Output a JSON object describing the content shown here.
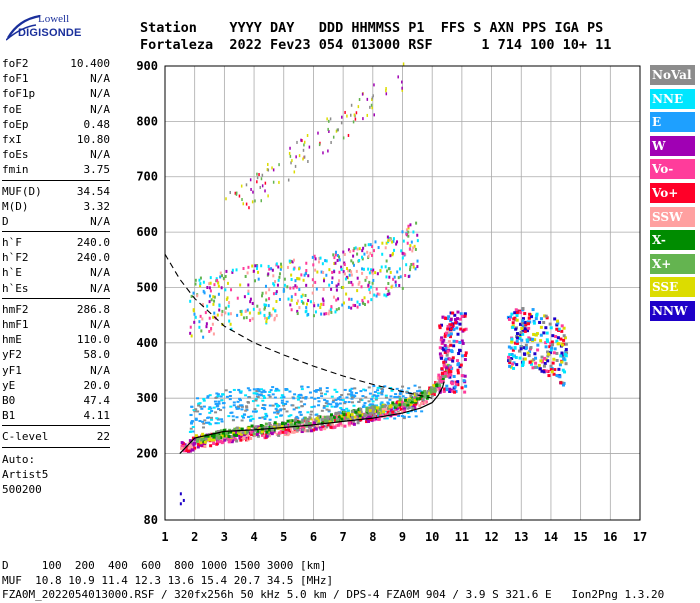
{
  "logo": {
    "line1": "Lowell",
    "line2": "DIGISONDE"
  },
  "header": {
    "line1": "Station    YYYY DAY   DDD HHMMSS P1  FFS S AXN PPS IGA PS",
    "line2": "Fortaleza  2022 Fev23 054 013000 RSF      1 714 100 10+ 11"
  },
  "params": [
    [
      [
        "foF2",
        "10.400"
      ],
      [
        "foF1",
        "N/A"
      ],
      [
        "foF1p",
        "N/A"
      ],
      [
        "foE",
        "N/A"
      ],
      [
        "foEp",
        "0.48"
      ],
      [
        "fxI",
        "10.80"
      ],
      [
        "foEs",
        "N/A"
      ],
      [
        "fmin",
        "3.75"
      ]
    ],
    [
      [
        "MUF(D)",
        "34.54"
      ],
      [
        "M(D)",
        "3.32"
      ],
      [
        "D",
        "N/A"
      ]
    ],
    [
      [
        "h`F",
        "240.0"
      ],
      [
        "h`F2",
        "240.0"
      ],
      [
        "h`E",
        "N/A"
      ],
      [
        "h`Es",
        "N/A"
      ]
    ],
    [
      [
        "hmF2",
        "286.8"
      ],
      [
        "hmF1",
        "N/A"
      ],
      [
        "hmE",
        "110.0"
      ],
      [
        "yF2",
        "58.0"
      ],
      [
        "yF1",
        "N/A"
      ],
      [
        "yE",
        "20.0"
      ],
      [
        "B0",
        "47.4"
      ],
      [
        "B1",
        "4.11"
      ]
    ],
    [
      [
        "C-level",
        "22"
      ]
    ]
  ],
  "auto": {
    "l1": "Auto:",
    "l2": "Artist5",
    "l3": "500200"
  },
  "footer": {
    "line1": "D     100  200  400  600  800 1000 1500 3000 [km]",
    "line2": "MUF  10.8 10.9 11.4 12.3 13.6 15.4 20.7 34.5 [MHz]",
    "line3": "FZA0M_2022054013000.RSF / 320fx256h 50 kHz 5.0 km / DPS-4 FZA0M 904 / 3.9 S 321.6 E   Ion2Png 1.3.20"
  },
  "legend": [
    {
      "label": "NoVal",
      "color": "#8c8c8c"
    },
    {
      "label": "NNE",
      "color": "#00e6ff"
    },
    {
      "label": "E",
      "color": "#1ea0ff"
    },
    {
      "label": "W",
      "color": "#a000b4"
    },
    {
      "label": "Vo-",
      "color": "#ff3c9b"
    },
    {
      "label": "Vo+",
      "color": "#ff0028"
    },
    {
      "label": "SSW",
      "color": "#ffa0a0"
    },
    {
      "label": "X-",
      "color": "#008c00"
    },
    {
      "label": "X+",
      "color": "#64b450"
    },
    {
      "label": "SSE",
      "color": "#dcdc00"
    },
    {
      "label": "NNW",
      "color": "#1e00c8"
    }
  ],
  "chart_data": {
    "type": "scatter",
    "xlim": [
      1,
      17
    ],
    "ylim": [
      80,
      900
    ],
    "xticks": [
      1,
      2,
      3,
      4,
      5,
      6,
      7,
      8,
      9,
      10,
      11,
      12,
      13,
      14,
      15,
      16,
      17
    ],
    "yticks": [
      80,
      200,
      300,
      400,
      500,
      600,
      700,
      800,
      900
    ],
    "grid": true,
    "legend_position": "right",
    "profile_curve": {
      "x": [
        1.5,
        2,
        3,
        4,
        5,
        6,
        7,
        8,
        9,
        9.6,
        10.0,
        10.2,
        10.35,
        10.4
      ],
      "y": [
        200,
        228,
        240,
        243,
        247,
        252,
        258,
        264,
        273,
        282,
        292,
        305,
        320,
        330
      ]
    },
    "dashed_curve": {
      "x": [
        1,
        1.5,
        2,
        3,
        4,
        5,
        6,
        7,
        8,
        9,
        10
      ],
      "y": [
        560,
        515,
        480,
        430,
        400,
        378,
        358,
        340,
        325,
        312,
        300
      ]
    },
    "o_trace": {
      "x": [
        1.5,
        2,
        3,
        4,
        5,
        6,
        7,
        8,
        9,
        9.6,
        10,
        10.3,
        10.5,
        10.6
      ],
      "y": [
        212,
        222,
        232,
        240,
        247,
        255,
        263,
        273,
        288,
        300,
        318,
        345,
        390,
        440
      ]
    },
    "x_trace": {
      "x": [
        2,
        3,
        4,
        5,
        6,
        7,
        8,
        9,
        9.8,
        10.3,
        10.6
      ],
      "y": [
        228,
        238,
        246,
        253,
        262,
        270,
        280,
        295,
        310,
        335,
        370
      ]
    },
    "e_trace": {
      "x": [
        1.8,
        3,
        4,
        5,
        6,
        7,
        8,
        9,
        9.6
      ],
      "y": [
        270,
        290,
        290,
        295,
        292,
        293,
        294,
        295,
        298
      ]
    },
    "upper_trace": {
      "x": [
        1.8,
        3,
        4,
        5,
        6,
        7,
        8,
        9,
        9.5
      ],
      "y": [
        460,
        480,
        490,
        497,
        505,
        515,
        530,
        555,
        585
      ]
    },
    "cluster_right": {
      "x": [
        12.5,
        13,
        13.5,
        14,
        14.5
      ],
      "y": [
        400,
        415,
        410,
        395,
        375
      ]
    }
  }
}
